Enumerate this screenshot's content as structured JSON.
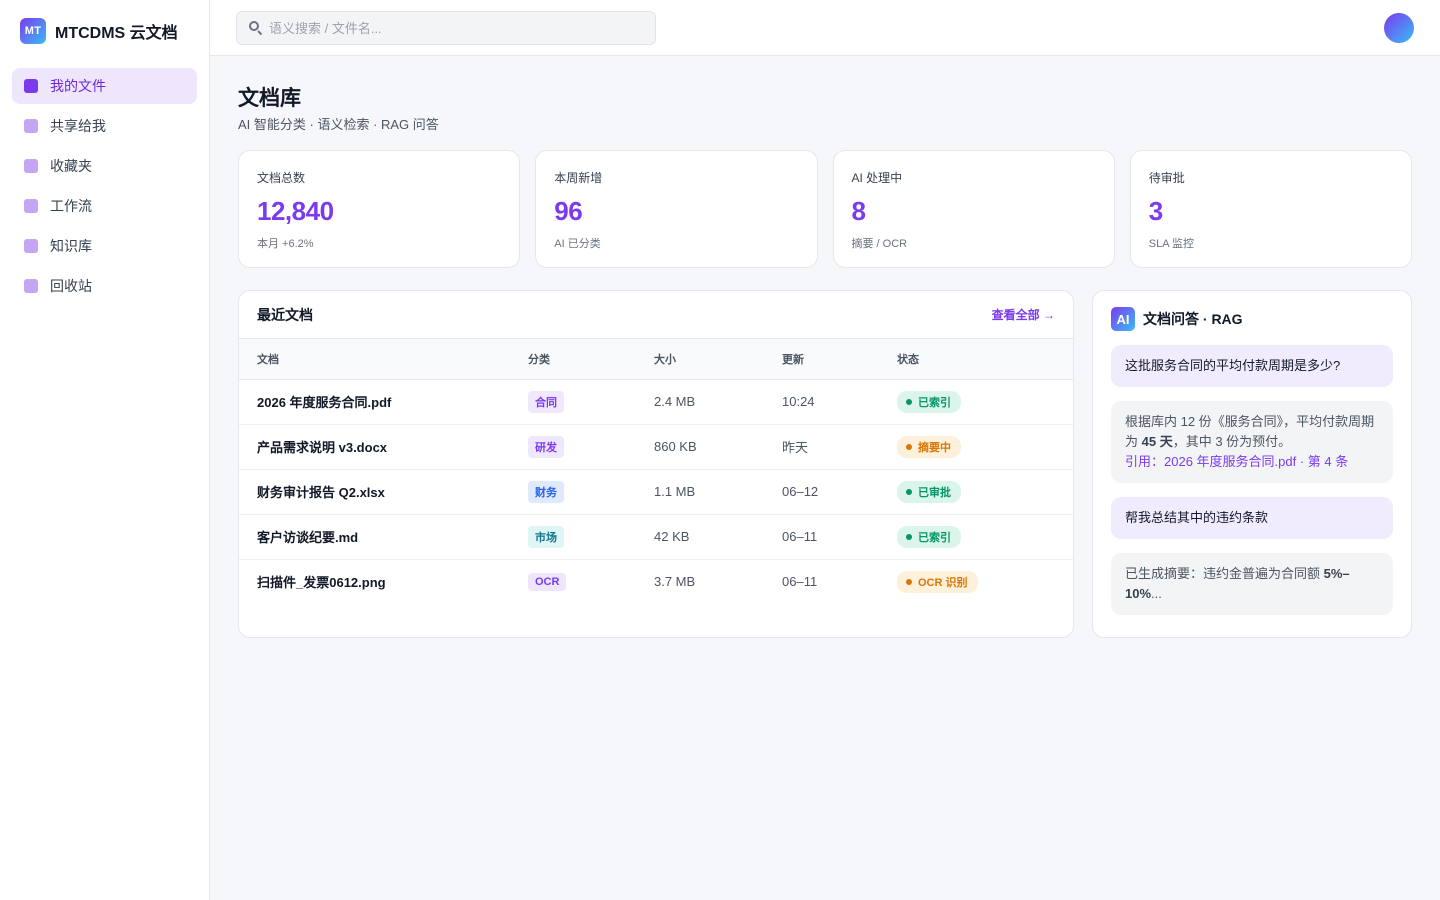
{
  "brand": {
    "logo_text": "MT",
    "name": "MTCDMS 云文档"
  },
  "nav": {
    "items": [
      {
        "label": "我的文件",
        "active": true
      },
      {
        "label": "共享给我",
        "active": false
      },
      {
        "label": "收藏夹",
        "active": false
      },
      {
        "label": "工作流",
        "active": false
      },
      {
        "label": "知识库",
        "active": false
      },
      {
        "label": "回收站",
        "active": false
      }
    ]
  },
  "header": {
    "search_placeholder": "语义搜索 / 文件名..."
  },
  "page": {
    "title": "文档库",
    "subtitle": "AI 智能分类 · 语义检索 · RAG 问答"
  },
  "stats": [
    {
      "label": "文档总数",
      "value": "12,840",
      "note": "本月 +6.2%"
    },
    {
      "label": "本周新增",
      "value": "96",
      "note": "AI 已分类"
    },
    {
      "label": "AI 处理中",
      "value": "8",
      "note": "摘要 / OCR"
    },
    {
      "label": "待审批",
      "value": "3",
      "note": "SLA 监控"
    }
  ],
  "recent": {
    "title": "最近文档",
    "view_all": "查看全部 →",
    "columns": [
      "文档",
      "分类",
      "大小",
      "更新",
      "状态"
    ],
    "rows": [
      {
        "name": "2026 年度服务合同.pdf",
        "category": "合同",
        "size": "2.4 MB",
        "updated": "10:24",
        "status": "已索引"
      },
      {
        "name": "产品需求说明 v3.docx",
        "category": "研发",
        "size": "860 KB",
        "updated": "昨天",
        "status": "摘要中"
      },
      {
        "name": "财务审计报告 Q2.xlsx",
        "category": "财务",
        "size": "1.1 MB",
        "updated": "06–12",
        "status": "已审批"
      },
      {
        "name": "客户访谈纪要.md",
        "category": "市场",
        "size": "42 KB",
        "updated": "06–11",
        "status": "已索引"
      },
      {
        "name": "扫描件_发票0612.png",
        "category": "OCR",
        "size": "3.7 MB",
        "updated": "06–11",
        "status": "OCR 识别"
      }
    ]
  },
  "rag": {
    "icon_text": "AI",
    "title": "文档问答 · RAG",
    "q1": "这批服务合同的平均付款周期是多少?",
    "a1_pre": "根据库内 12 份《服务合同》，平均付款周期为 ",
    "a1_bold": "45 天",
    "a1_post": "，其中 3 份为预付。",
    "a1_cite": "引用：2026 年度服务合同.pdf · 第 4 条",
    "q2": "帮我总结其中的违约条款",
    "a2_pre": "已生成摘要：违约金普遍为合同额 ",
    "a2_bold": "5%–10%",
    "a2_post": "..."
  },
  "colors": {
    "accent": "#7c3aed",
    "tag_contract": {
      "bg": "#f1e8fd",
      "fg": "#7c3aed"
    },
    "tag_rd": {
      "bg": "#efe7fd",
      "fg": "#7c3aed"
    },
    "tag_finance": {
      "bg": "#e0eafe",
      "fg": "#2563eb"
    },
    "tag_market": {
      "bg": "#dff5f6",
      "fg": "#0e7490"
    },
    "tag_ocr": {
      "bg": "#ede6fd",
      "fg": "#7c3aed"
    },
    "status_done": {
      "bg": "#dcf5ea",
      "fg": "#059669"
    },
    "status_pending": {
      "bg": "#fdf1dc",
      "fg": "#d97706"
    }
  },
  "icons": {
    "search": "search-icon",
    "nav_item": "square-icon",
    "avatar": "avatar"
  }
}
